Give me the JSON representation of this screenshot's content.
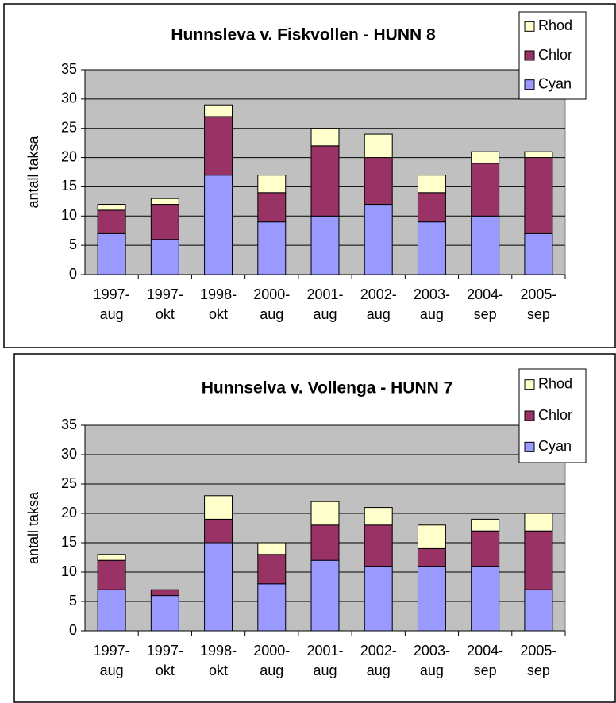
{
  "chart_data": [
    {
      "type": "stacked_bar",
      "title": "Hunnsleva v. Fiskvollen - HUNN 8",
      "y_label": "antall taksa",
      "categories": [
        [
          "1997-",
          "aug"
        ],
        [
          "1997-",
          "okt"
        ],
        [
          "1998-",
          "okt"
        ],
        [
          "2000-",
          "aug"
        ],
        [
          "2001-",
          "aug"
        ],
        [
          "2002-",
          "aug"
        ],
        [
          "2003-",
          "aug"
        ],
        [
          "2004-",
          "sep"
        ],
        [
          "2005-",
          "sep"
        ]
      ],
      "series": [
        {
          "name": "Cyan",
          "color": "#9999ff",
          "values": [
            7,
            6,
            17,
            9,
            10,
            12,
            9,
            10,
            7
          ]
        },
        {
          "name": "Chlor",
          "color": "#993366",
          "values": [
            4,
            6,
            10,
            5,
            12,
            8,
            5,
            9,
            13
          ]
        },
        {
          "name": "Rhod",
          "color": "#ffffcc",
          "values": [
            1,
            1,
            2,
            3,
            3,
            4,
            3,
            2,
            1
          ]
        }
      ],
      "ylim": [
        0,
        35
      ],
      "yticks": [
        0,
        5,
        10,
        15,
        20,
        25,
        30,
        35
      ],
      "grid": true
    },
    {
      "type": "stacked_bar",
      "title": "Hunnselva v. Vollenga - HUNN 7",
      "y_label": "antall taksa",
      "categories": [
        [
          "1997-",
          "aug"
        ],
        [
          "1997-",
          "okt"
        ],
        [
          "1998-",
          "okt"
        ],
        [
          "2000-",
          "aug"
        ],
        [
          "2001-",
          "aug"
        ],
        [
          "2002-",
          "aug"
        ],
        [
          "2003-",
          "aug"
        ],
        [
          "2004-",
          "sep"
        ],
        [
          "2005-",
          "sep"
        ]
      ],
      "series": [
        {
          "name": "Cyan",
          "color": "#9999ff",
          "values": [
            7,
            6,
            15,
            8,
            12,
            11,
            11,
            11,
            7
          ]
        },
        {
          "name": "Chlor",
          "color": "#993366",
          "values": [
            5,
            1,
            4,
            5,
            6,
            7,
            3,
            6,
            10
          ]
        },
        {
          "name": "Rhod",
          "color": "#ffffcc",
          "values": [
            1,
            0,
            4,
            2,
            4,
            3,
            4,
            2,
            3
          ]
        }
      ],
      "ylim": [
        0,
        35
      ],
      "yticks": [
        0,
        5,
        10,
        15,
        20,
        25,
        30,
        35
      ],
      "grid": true
    }
  ]
}
